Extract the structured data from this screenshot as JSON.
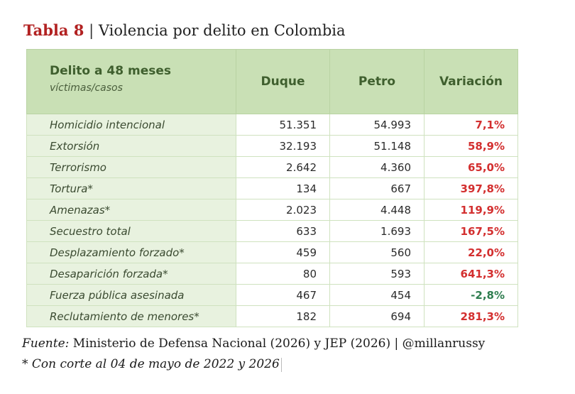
{
  "title": {
    "number": "Tabla 8",
    "separator": "|",
    "text": "Violencia por delito en Colombia"
  },
  "table": {
    "header": {
      "col1_main": "Delito a 48 meses",
      "col1_sub": "víctimas/casos",
      "col2": "Duque",
      "col3": "Petro",
      "col4": "Variación"
    },
    "rows": [
      {
        "label": "Homicidio intencional",
        "duque": "51.351",
        "petro": "54.993",
        "variacion": "7,1%"
      },
      {
        "label": "Extorsión",
        "duque": "32.193",
        "petro": "51.148",
        "variacion": "58,9%"
      },
      {
        "label": "Terrorismo",
        "duque": "2.642",
        "petro": "4.360",
        "variacion": "65,0%"
      },
      {
        "label": "Tortura*",
        "duque": "134",
        "petro": "667",
        "variacion": "397,8%"
      },
      {
        "label": "Amenazas*",
        "duque": "2.023",
        "petro": "4.448",
        "variacion": "119,9%"
      },
      {
        "label": "Secuestro total",
        "duque": "633",
        "petro": "1.693",
        "variacion": "167,5%"
      },
      {
        "label": "Desplazamiento forzado*",
        "duque": "459",
        "petro": "560",
        "variacion": "22,0%"
      },
      {
        "label": "Desaparición forzada*",
        "duque": "80",
        "petro": "593",
        "variacion": "641,3%"
      },
      {
        "label": "Fuerza pública asesinada",
        "duque": "467",
        "petro": "454",
        "variacion": "-2,8%"
      },
      {
        "label": "Reclutamiento de menores*",
        "duque": "182",
        "petro": "694",
        "variacion": "281,3%"
      }
    ]
  },
  "footer": {
    "source_label": "Fuente:",
    "source_text": "Ministerio de Defensa Nacional (2026) y JEP (2026) | @millanrussy",
    "note": "* Con corte al 04 de mayo de 2022 y 2026"
  },
  "colors": {
    "title_accent": "#b22222",
    "header_bg": "#c9e0b5",
    "label_bg": "#e8f2df",
    "increase": "#d32f2f",
    "decrease": "#2e7d4f"
  }
}
